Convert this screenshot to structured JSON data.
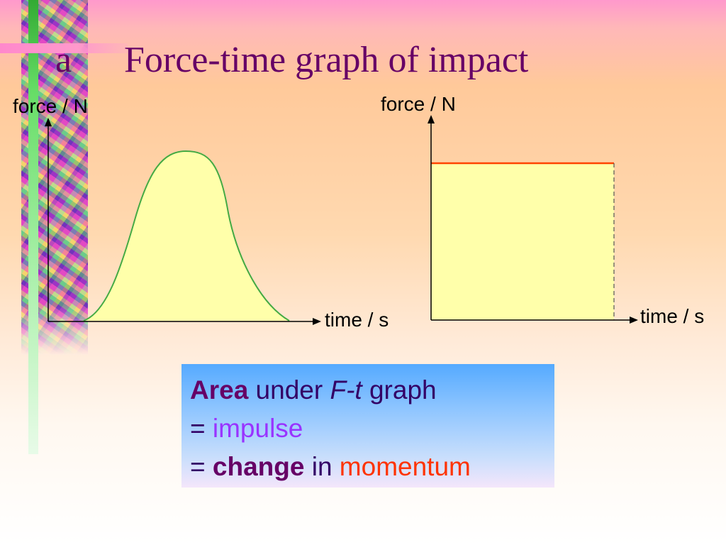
{
  "title": {
    "letter": "a",
    "text": "Force-time graph of impact"
  },
  "graph_left": {
    "y_label": "force / N",
    "x_label": "time / s",
    "shape": "bell-shaped curve"
  },
  "graph_right": {
    "y_label": "force / N",
    "x_label": "time / s",
    "shape": "rectangle with constant force"
  },
  "summary": {
    "line1": {
      "bold": "Area",
      "mid": " under ",
      "italic": "F-t",
      "end": " graph"
    },
    "line2": {
      "prefix": "= ",
      "word": "impulse"
    },
    "line3": {
      "prefix": "= ",
      "bold": "change",
      "mid": " in ",
      "word": "momentum"
    }
  },
  "colors": {
    "title": "#660066",
    "fill": "#ffffaa",
    "curve": "#44aa44",
    "force_line": "#ff4400",
    "impulse": "#9933ff",
    "momentum": "#ff3300"
  }
}
